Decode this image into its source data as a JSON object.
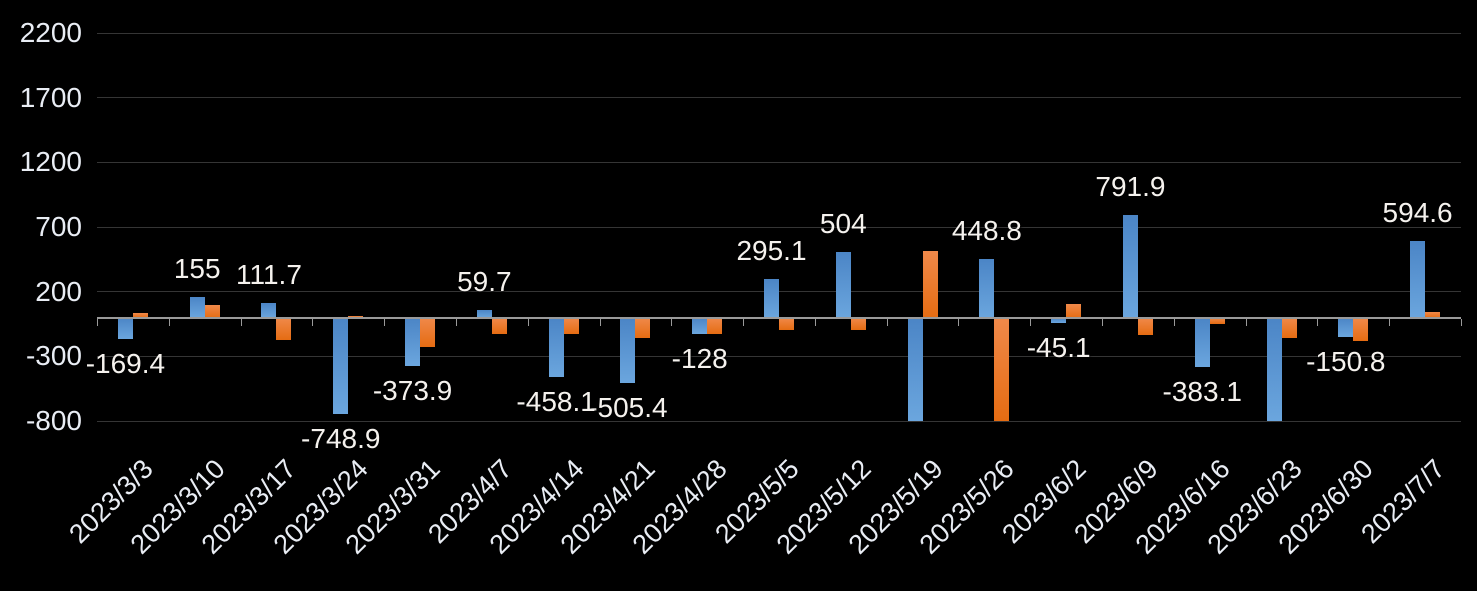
{
  "chart_data": {
    "type": "bar",
    "title": "",
    "legend": "none",
    "grid": "horizontal",
    "background_color": "#000000",
    "categories": [
      "2023/3/3",
      "2023/3/10",
      "2023/3/17",
      "2023/3/24",
      "2023/3/31",
      "2023/4/7",
      "2023/4/14",
      "2023/4/21",
      "2023/4/28",
      "2023/5/5",
      "2023/5/12",
      "2023/5/19",
      "2023/5/26",
      "2023/6/2",
      "2023/6/9",
      "2023/6/16",
      "2023/6/23",
      "2023/6/30",
      "2023/7/7"
    ],
    "series": [
      {
        "color": "#5b9bd5",
        "values": [
          -169.4,
          155,
          111.7,
          -748.9,
          -373.9,
          59.7,
          -458.1,
          -505.4,
          -128,
          295.1,
          504,
          -800,
          448.8,
          -45.1,
          791.9,
          -383.1,
          -800,
          -150.8,
          594.6
        ],
        "data_labels": [
          "-169.4",
          "155",
          "111.7",
          "-748.9",
          "-373.9",
          "59.7",
          "-458.1",
          "-505.4",
          "-128",
          "295.1",
          "504",
          null,
          "448.8",
          "-45.1",
          "791.9",
          "-383.1",
          null,
          "-150.8",
          "594.6"
        ]
      },
      {
        "color": "#ed7d31",
        "values": [
          35,
          100,
          -170,
          15,
          -230,
          -125,
          -130,
          -160,
          -130,
          -100,
          -100,
          515,
          -800,
          105,
          -135,
          -50,
          -155,
          -185,
          45
        ],
        "data_labels": [
          null,
          null,
          null,
          null,
          null,
          null,
          null,
          null,
          null,
          null,
          null,
          null,
          null,
          null,
          null,
          null,
          null,
          null,
          null
        ]
      }
    ],
    "y_axis": {
      "tick_labels": [
        "2200",
        "1700",
        "1200",
        "700",
        "200",
        "-300",
        "-800"
      ],
      "tick_values": [
        2200,
        1700,
        1200,
        700,
        200,
        -300,
        -800
      ],
      "max": 2200,
      "min": -800
    },
    "x_axis": {
      "label_rotation_deg": -45
    }
  }
}
